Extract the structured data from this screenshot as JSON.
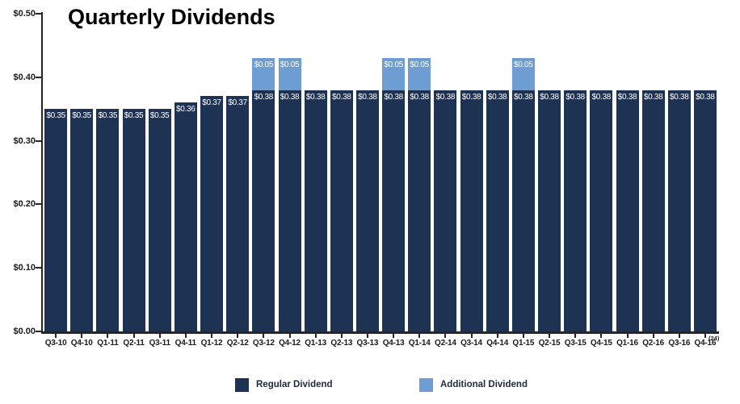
{
  "chart_data": {
    "type": "bar",
    "stacked": true,
    "title": "Quarterly Dividends",
    "categories": [
      "Q3-10",
      "Q4-10",
      "Q1-11",
      "Q2-11",
      "Q3-11",
      "Q4-11",
      "Q1-12",
      "Q2-12",
      "Q3-12",
      "Q4-12",
      "Q1-13",
      "Q2-13",
      "Q3-13",
      "Q4-13",
      "Q1-14",
      "Q2-14",
      "Q3-14",
      "Q4-14",
      "Q1-15",
      "Q2-15",
      "Q3-15",
      "Q4-15",
      "Q1-16",
      "Q2-16",
      "Q3-16",
      "Q4-16"
    ],
    "series": [
      {
        "name": "Regular Dividend",
        "color": "#1E3254",
        "values": [
          0.35,
          0.35,
          0.35,
          0.35,
          0.35,
          0.36,
          0.37,
          0.37,
          0.38,
          0.38,
          0.38,
          0.38,
          0.38,
          0.38,
          0.38,
          0.38,
          0.38,
          0.38,
          0.38,
          0.38,
          0.38,
          0.38,
          0.38,
          0.38,
          0.38,
          0.38
        ]
      },
      {
        "name": "Additional Dividend",
        "color": "#6D9DD2",
        "values": [
          0,
          0,
          0,
          0,
          0,
          0,
          0,
          0,
          0.05,
          0.05,
          0,
          0,
          0,
          0.05,
          0.05,
          0,
          0,
          0,
          0.05,
          0,
          0,
          0,
          0,
          0,
          0,
          0
        ]
      }
    ],
    "ylim": [
      0,
      0.5
    ],
    "yticks": [
      "$0.00",
      "$0.10",
      "$0.20",
      "$0.30",
      "$0.40",
      "$0.50"
    ],
    "grid": false,
    "legend_position": "bottom",
    "value_label_prefix": "$",
    "footnote": "(24)"
  },
  "colors": {
    "axis": "#262626",
    "tick_label": "#1A1A1A",
    "bar_label": "#FFFFFF",
    "legend_text": "#222B3D",
    "background": "#FFFFFF"
  }
}
